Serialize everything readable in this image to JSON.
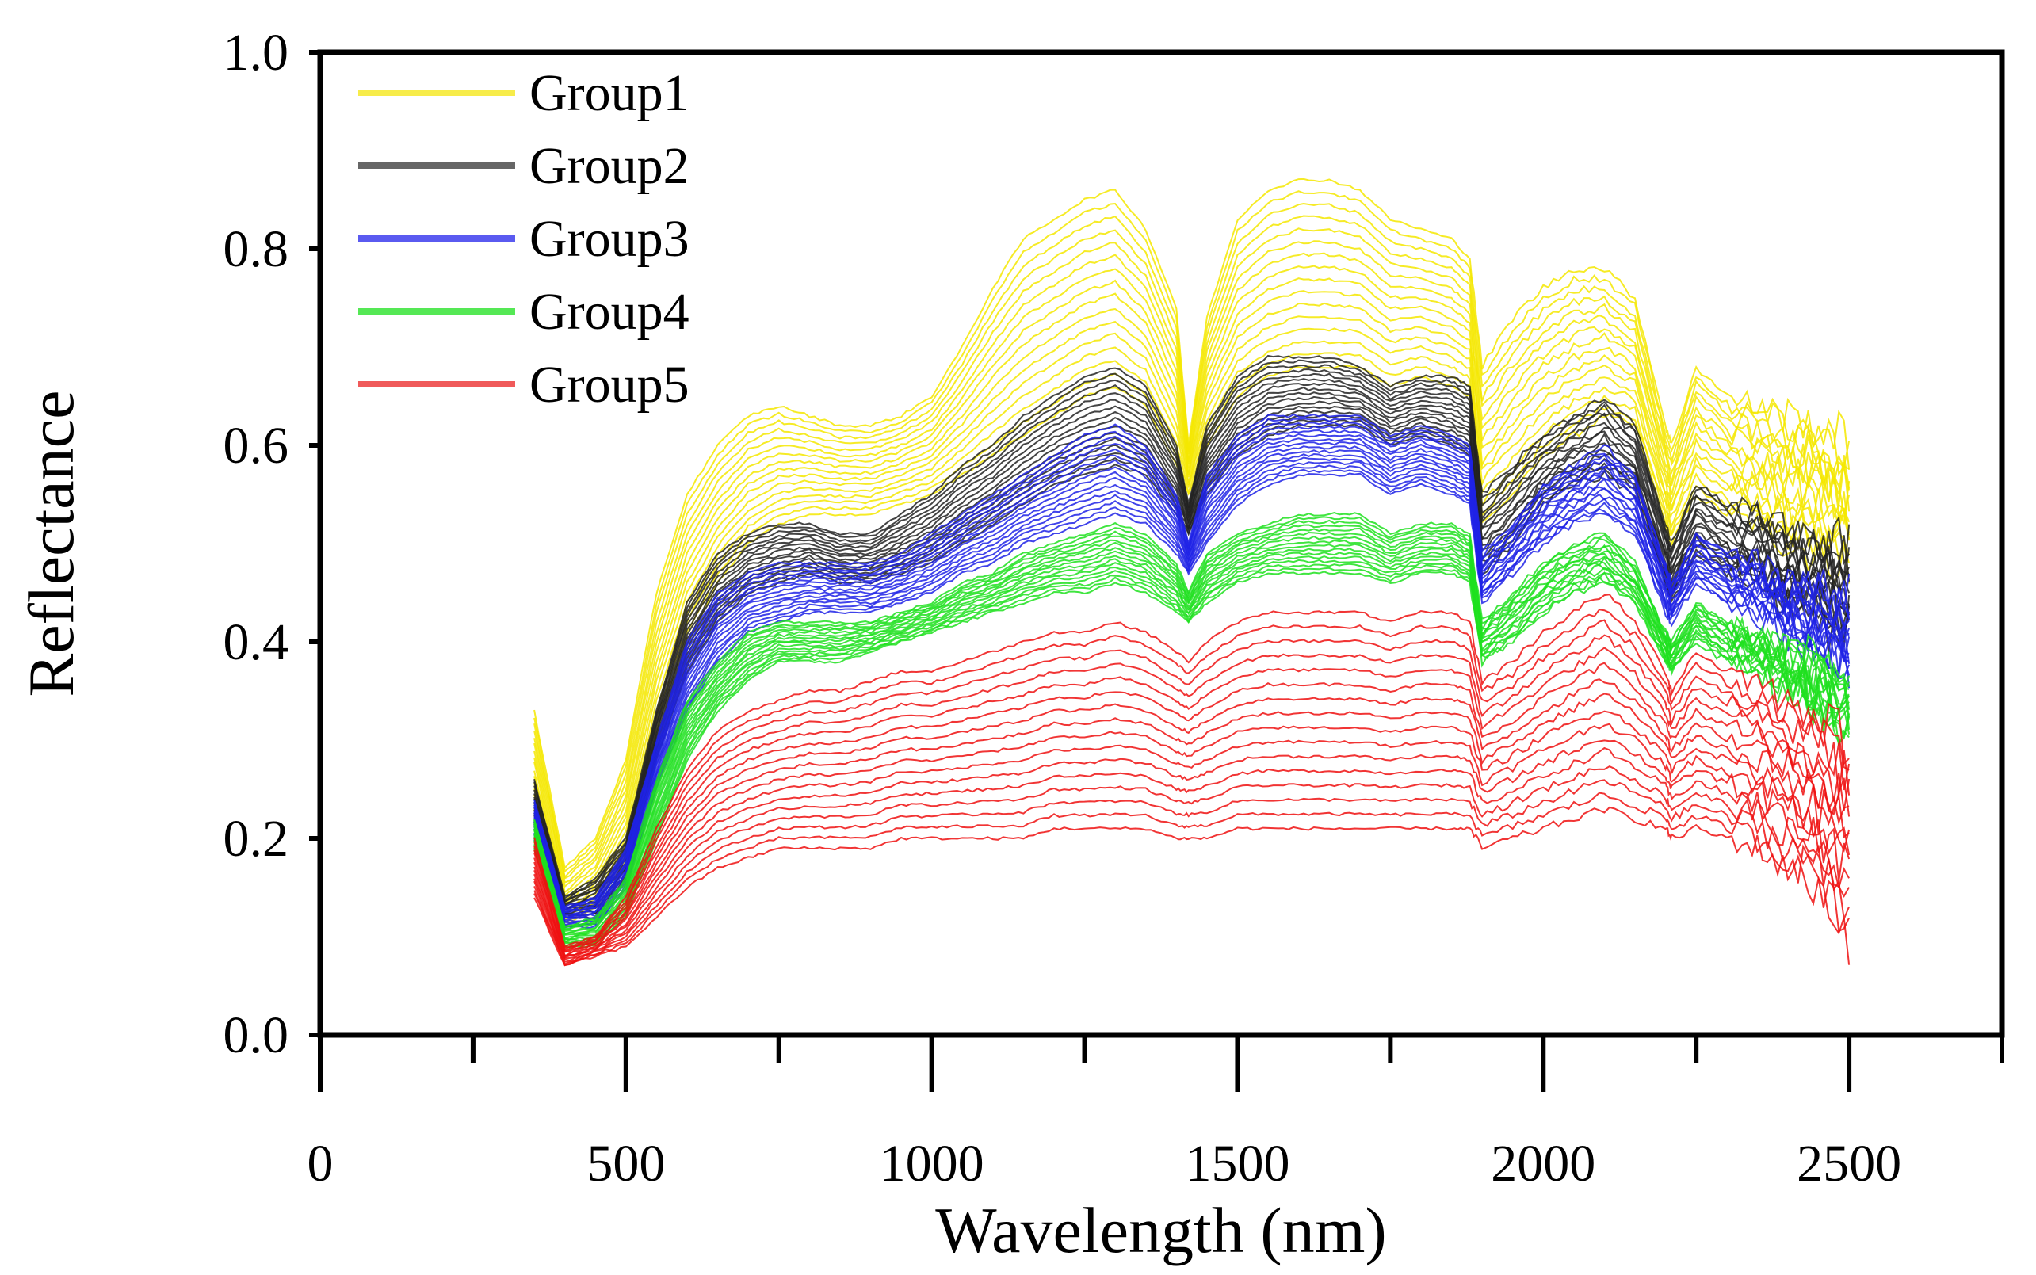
{
  "chart_data": {
    "type": "line",
    "title": "",
    "xlabel": "Wavelength (nm)",
    "ylabel": "Reflectance",
    "xlim": [
      0,
      2750
    ],
    "ylim": [
      0.0,
      1.0
    ],
    "x_ticks": [
      0,
      500,
      1000,
      1500,
      2000,
      2500
    ],
    "x_tick_labels": [
      "0",
      "500",
      "1000",
      "1500",
      "2000",
      "2500"
    ],
    "y_ticks": [
      0.0,
      0.2,
      0.4,
      0.6,
      0.8,
      1.0
    ],
    "y_tick_labels": [
      "0.0",
      "0.2",
      "0.4",
      "0.6",
      "0.8",
      "1.0"
    ],
    "grid": false,
    "legend_position": "top-left",
    "x": [
      350,
      400,
      450,
      500,
      550,
      600,
      650,
      700,
      750,
      800,
      850,
      900,
      950,
      1000,
      1050,
      1100,
      1150,
      1200,
      1250,
      1300,
      1350,
      1400,
      1420,
      1450,
      1500,
      1550,
      1600,
      1650,
      1700,
      1750,
      1800,
      1850,
      1880,
      1900,
      1950,
      2000,
      2050,
      2100,
      2150,
      2200,
      2210,
      2250,
      2300,
      2350,
      2400,
      2450,
      2500
    ],
    "series": [
      {
        "name": "Group1",
        "color": "#f5e800",
        "curves_min": [
          0.23,
          0.11,
          0.13,
          0.17,
          0.3,
          0.4,
          0.46,
          0.5,
          0.52,
          0.53,
          0.53,
          0.53,
          0.54,
          0.55,
          0.57,
          0.59,
          0.61,
          0.63,
          0.65,
          0.66,
          0.64,
          0.58,
          0.55,
          0.6,
          0.65,
          0.67,
          0.68,
          0.68,
          0.68,
          0.66,
          0.67,
          0.66,
          0.65,
          0.52,
          0.55,
          0.59,
          0.61,
          0.63,
          0.62,
          0.52,
          0.5,
          0.55,
          0.53,
          0.52,
          0.5,
          0.49,
          0.48
        ],
        "curves_max": [
          0.33,
          0.17,
          0.2,
          0.28,
          0.45,
          0.55,
          0.6,
          0.63,
          0.64,
          0.63,
          0.62,
          0.62,
          0.63,
          0.65,
          0.7,
          0.76,
          0.81,
          0.83,
          0.85,
          0.86,
          0.82,
          0.74,
          0.6,
          0.73,
          0.83,
          0.86,
          0.87,
          0.87,
          0.86,
          0.83,
          0.82,
          0.81,
          0.79,
          0.68,
          0.73,
          0.76,
          0.78,
          0.78,
          0.75,
          0.62,
          0.6,
          0.68,
          0.65,
          0.64,
          0.63,
          0.62,
          0.6
        ],
        "n_curves": 16
      },
      {
        "name": "Group2",
        "color": "#222222",
        "curves_min": [
          0.21,
          0.12,
          0.12,
          0.16,
          0.28,
          0.37,
          0.42,
          0.45,
          0.46,
          0.47,
          0.46,
          0.46,
          0.47,
          0.48,
          0.5,
          0.52,
          0.54,
          0.56,
          0.57,
          0.58,
          0.57,
          0.53,
          0.51,
          0.55,
          0.59,
          0.61,
          0.62,
          0.62,
          0.62,
          0.6,
          0.61,
          0.6,
          0.59,
          0.47,
          0.5,
          0.54,
          0.56,
          0.57,
          0.55,
          0.46,
          0.44,
          0.49,
          0.47,
          0.46,
          0.44,
          0.42,
          0.4
        ],
        "curves_max": [
          0.26,
          0.14,
          0.16,
          0.2,
          0.33,
          0.44,
          0.49,
          0.51,
          0.52,
          0.52,
          0.51,
          0.51,
          0.53,
          0.55,
          0.58,
          0.6,
          0.63,
          0.65,
          0.67,
          0.68,
          0.66,
          0.6,
          0.54,
          0.62,
          0.67,
          0.69,
          0.69,
          0.69,
          0.68,
          0.66,
          0.67,
          0.67,
          0.66,
          0.55,
          0.58,
          0.61,
          0.63,
          0.65,
          0.62,
          0.52,
          0.5,
          0.56,
          0.54,
          0.53,
          0.51,
          0.5,
          0.5
        ],
        "n_curves": 16
      },
      {
        "name": "Group3",
        "color": "#1e22e6",
        "curves_min": [
          0.2,
          0.11,
          0.11,
          0.15,
          0.25,
          0.33,
          0.38,
          0.41,
          0.42,
          0.43,
          0.43,
          0.43,
          0.44,
          0.45,
          0.47,
          0.48,
          0.5,
          0.51,
          0.52,
          0.53,
          0.52,
          0.49,
          0.47,
          0.5,
          0.54,
          0.56,
          0.57,
          0.57,
          0.57,
          0.55,
          0.56,
          0.55,
          0.54,
          0.44,
          0.47,
          0.5,
          0.52,
          0.53,
          0.51,
          0.43,
          0.42,
          0.46,
          0.44,
          0.43,
          0.41,
          0.39,
          0.37
        ],
        "curves_max": [
          0.24,
          0.13,
          0.14,
          0.19,
          0.3,
          0.4,
          0.45,
          0.47,
          0.48,
          0.48,
          0.48,
          0.48,
          0.49,
          0.51,
          0.53,
          0.55,
          0.57,
          0.59,
          0.61,
          0.62,
          0.6,
          0.55,
          0.5,
          0.57,
          0.61,
          0.63,
          0.63,
          0.63,
          0.63,
          0.61,
          0.62,
          0.61,
          0.6,
          0.49,
          0.52,
          0.56,
          0.58,
          0.6,
          0.57,
          0.48,
          0.46,
          0.51,
          0.49,
          0.48,
          0.46,
          0.45,
          0.44
        ],
        "n_curves": 16
      },
      {
        "name": "Group4",
        "color": "#1fe01f",
        "curves_min": [
          0.19,
          0.09,
          0.09,
          0.12,
          0.2,
          0.28,
          0.33,
          0.36,
          0.38,
          0.38,
          0.38,
          0.39,
          0.4,
          0.41,
          0.42,
          0.43,
          0.44,
          0.45,
          0.45,
          0.46,
          0.45,
          0.43,
          0.42,
          0.44,
          0.46,
          0.47,
          0.47,
          0.47,
          0.47,
          0.46,
          0.47,
          0.47,
          0.46,
          0.38,
          0.4,
          0.43,
          0.45,
          0.46,
          0.44,
          0.38,
          0.37,
          0.4,
          0.38,
          0.37,
          0.35,
          0.33,
          0.31
        ],
        "curves_max": [
          0.22,
          0.11,
          0.12,
          0.16,
          0.26,
          0.34,
          0.38,
          0.41,
          0.42,
          0.42,
          0.42,
          0.42,
          0.43,
          0.44,
          0.46,
          0.47,
          0.49,
          0.5,
          0.51,
          0.52,
          0.51,
          0.48,
          0.45,
          0.49,
          0.51,
          0.52,
          0.53,
          0.53,
          0.53,
          0.51,
          0.52,
          0.52,
          0.51,
          0.42,
          0.45,
          0.48,
          0.5,
          0.51,
          0.48,
          0.41,
          0.4,
          0.44,
          0.42,
          0.41,
          0.39,
          0.38,
          0.36
        ],
        "n_curves": 16
      },
      {
        "name": "Group5",
        "color": "#ee1111",
        "curves_min": [
          0.14,
          0.07,
          0.08,
          0.09,
          0.12,
          0.15,
          0.17,
          0.18,
          0.19,
          0.19,
          0.19,
          0.19,
          0.2,
          0.2,
          0.2,
          0.2,
          0.2,
          0.21,
          0.21,
          0.21,
          0.21,
          0.2,
          0.2,
          0.2,
          0.21,
          0.21,
          0.21,
          0.21,
          0.21,
          0.21,
          0.21,
          0.21,
          0.21,
          0.19,
          0.2,
          0.21,
          0.22,
          0.23,
          0.22,
          0.21,
          0.2,
          0.21,
          0.2,
          0.19,
          0.17,
          0.15,
          0.1
        ],
        "curves_max": [
          0.2,
          0.09,
          0.1,
          0.14,
          0.21,
          0.27,
          0.31,
          0.33,
          0.34,
          0.35,
          0.35,
          0.36,
          0.37,
          0.37,
          0.38,
          0.39,
          0.4,
          0.41,
          0.41,
          0.42,
          0.41,
          0.39,
          0.38,
          0.4,
          0.42,
          0.43,
          0.43,
          0.43,
          0.43,
          0.42,
          0.43,
          0.43,
          0.42,
          0.36,
          0.38,
          0.41,
          0.43,
          0.45,
          0.42,
          0.37,
          0.35,
          0.39,
          0.37,
          0.36,
          0.34,
          0.32,
          0.3
        ],
        "n_curves": 16
      }
    ]
  }
}
